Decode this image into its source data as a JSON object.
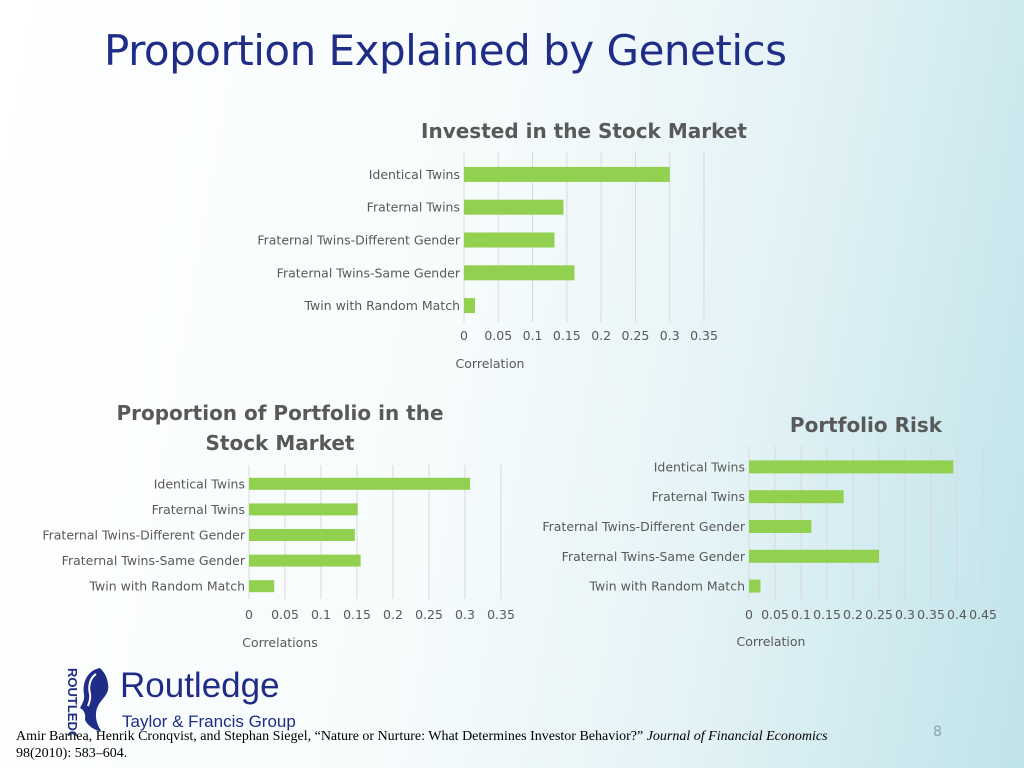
{
  "slide": {
    "title": "Proportion Explained by Genetics",
    "page_number": "8"
  },
  "logo": {
    "name": "Routledge",
    "subtitle": "Taylor & Francis Group",
    "vertical_text": "ROUTLEDGE"
  },
  "citation": {
    "text": "Amir Barnea, Henrik Cronqvist, and Stephan Siegel, “Nature or Nurture: What Determines Investor Behavior?”",
    "journal": "Journal of Financial Economics",
    "rest": "98(2010): 583–604."
  },
  "colors": {
    "bar": "#92d050",
    "title": "#1f2d86",
    "text": "#595959"
  },
  "chart_data": [
    {
      "type": "bar",
      "orientation": "horizontal",
      "title": "Invested in the Stock Market",
      "categories": [
        "Identical Twins",
        "Fraternal Twins",
        "Fraternal Twins-Different Gender",
        "Fraternal Twins-Same Gender",
        "Twin with Random Match"
      ],
      "values": [
        0.3,
        0.145,
        0.132,
        0.161,
        0.016
      ],
      "xlabel": "Correlation",
      "xlim": [
        0,
        0.35
      ],
      "ticks": [
        "0",
        "0.05",
        "0.1",
        "0.15",
        "0.2",
        "0.25",
        "0.3",
        "0.35"
      ],
      "grid": true
    },
    {
      "type": "bar",
      "orientation": "horizontal",
      "title": "Proportion of Portfolio in the Stock Market",
      "title_lines": [
        "Proportion of Portfolio in the",
        "Stock Market"
      ],
      "categories": [
        "Identical Twins",
        "Fraternal Twins",
        "Fraternal Twins-Different Gender",
        "Fraternal Twins-Same Gender",
        "Twin with Random Match"
      ],
      "values": [
        0.307,
        0.151,
        0.147,
        0.155,
        0.035
      ],
      "xlabel": "Correlations",
      "xlim": [
        0,
        0.35
      ],
      "ticks": [
        "0",
        "0.05",
        "0.1",
        "0.15",
        "0.2",
        "0.25",
        "0.3",
        "0.35"
      ],
      "grid": true
    },
    {
      "type": "bar",
      "orientation": "horizontal",
      "title": "Portfolio Risk",
      "categories": [
        "Identical Twins",
        "Fraternal Twins",
        "Fraternal Twins-Different Gender",
        "Fraternal Twins-Same Gender",
        "Twin with Random Match"
      ],
      "values": [
        0.393,
        0.182,
        0.12,
        0.25,
        0.022
      ],
      "xlabel": "Correlation",
      "xlim": [
        0,
        0.45
      ],
      "ticks": [
        "0",
        "0.05",
        "0.1",
        "0.15",
        "0.2",
        "0.25",
        "0.3",
        "0.35",
        "0.4",
        "0.45"
      ],
      "grid": true
    }
  ]
}
